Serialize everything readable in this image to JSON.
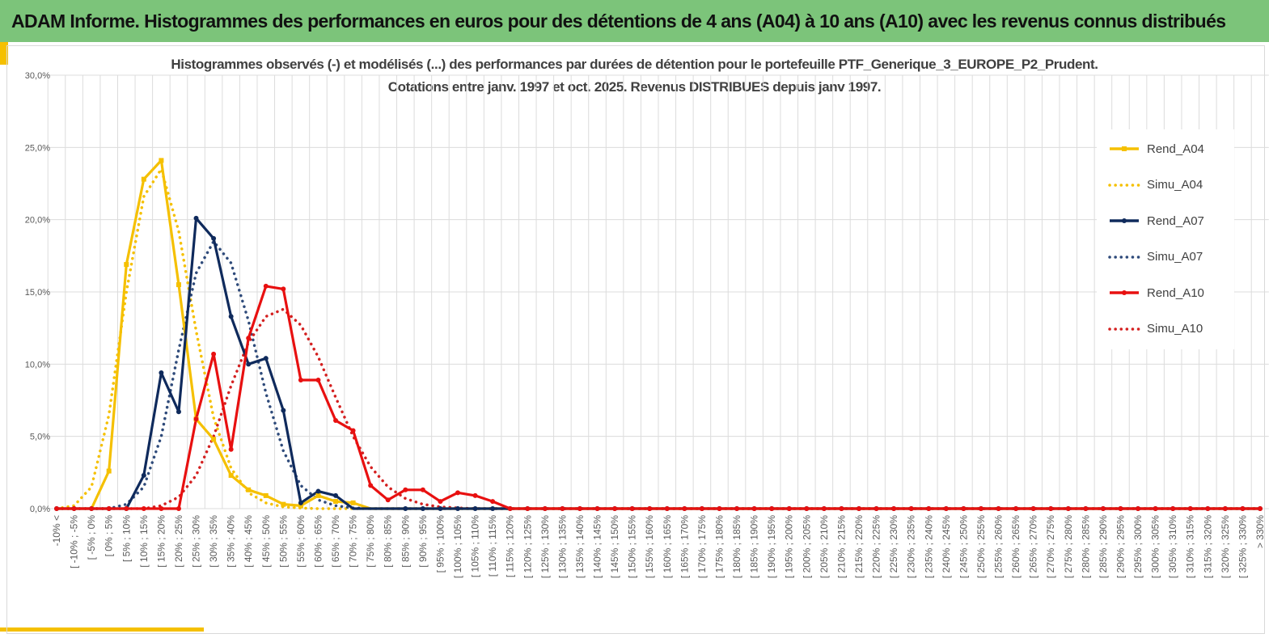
{
  "banner": {
    "title": "ADAM Informe. Histogrammes des performances en euros pour des détentions de 4 ans (A04) à 10 ans (A10) avec les revenus connus distribués"
  },
  "chart_data": {
    "type": "line",
    "title_line1": "Histogrammes observés (-) et modélisés (...) des performances par durées de détention pour le portefeuille PTF_Generique_3_EUROPE_P2_Prudent.",
    "title_line2": "Cotations entre janv. 1997 et oct. 2025. Revenus DISTRIBUES depuis janv 1997.",
    "categories": [
      "-10% <",
      "[ -10% ; -5%",
      "[ -5% ; 0%",
      "[ 0% ; 5%",
      "[ 5% ; 10%",
      "[ 10% ; 15%",
      "[ 15% ; 20%",
      "[ 20% ; 25%",
      "[ 25% ; 30%",
      "[ 30% ; 35%",
      "[ 35% ; 40%",
      "[ 40% ; 45%",
      "[ 45% ; 50%",
      "[ 50% ; 55%",
      "[ 55% ; 60%",
      "[ 60% ; 65%",
      "[ 65% ; 70%",
      "[ 70% ; 75%",
      "[ 75% ; 80%",
      "[ 80% ; 85%",
      "[ 85% ; 90%",
      "[ 90% ; 95%",
      "[ 95% ; 100%",
      "[ 100% ; 105%",
      "[ 105% ; 110%",
      "[ 110% ; 115%",
      "[ 115% ; 120%",
      "[ 120% ; 125%",
      "[ 125% ; 130%",
      "[ 130% ; 135%",
      "[ 135% ; 140%",
      "[ 140% ; 145%",
      "[ 145% ; 150%",
      "[ 150% ; 155%",
      "[ 155% ; 160%",
      "[ 160% ; 165%",
      "[ 165% ; 170%",
      "[ 170% ; 175%",
      "[ 175% ; 180%",
      "[ 180% ; 185%",
      "[ 185% ; 190%",
      "[ 190% ; 195%",
      "[ 195% ; 200%",
      "[ 200% ; 205%",
      "[ 205% ; 210%",
      "[ 210% ; 215%",
      "[ 215% ; 220%",
      "[ 220% ; 225%",
      "[ 225% ; 230%",
      "[ 230% ; 235%",
      "[ 235% ; 240%",
      "[ 240% ; 245%",
      "[ 245% ; 250%",
      "[ 250% ; 255%",
      "[ 255% ; 260%",
      "[ 260% ; 265%",
      "[ 265% ; 270%",
      "[ 270% ; 275%",
      "[ 275% ; 280%",
      "[ 280% ; 285%",
      "[ 285% ; 290%",
      "[ 290% ; 295%",
      "[ 295% ; 300%",
      "[ 300% ; 305%",
      "[ 305% ; 310%",
      "[ 310% ; 315%",
      "[ 315% ; 320%",
      "[ 320% ; 325%",
      "[ 325% ; 330%",
      "> 330%"
    ],
    "y_ticks": [
      "0,0%",
      "5,0%",
      "10,0%",
      "15,0%",
      "20,0%",
      "25,0%",
      "30,0%"
    ],
    "ylim": [
      0,
      30
    ],
    "grid": true,
    "legend_position": "right",
    "series": [
      {
        "name": "Rend_A04",
        "color": "#f5c000",
        "dashed": false,
        "markers": true,
        "values": [
          0,
          0,
          0,
          2.6,
          16.9,
          22.8,
          24.1,
          15.5,
          6.2,
          4.8,
          2.3,
          1.3,
          0.9,
          0.3,
          0.2,
          0.9,
          0.5,
          0.4,
          0,
          0,
          0,
          0,
          0,
          0,
          0,
          0,
          0,
          0,
          0,
          0,
          0,
          0,
          0,
          0,
          0,
          0,
          0,
          0,
          0,
          0,
          0,
          0,
          0,
          0,
          0,
          0,
          0,
          0,
          0,
          0,
          0,
          0,
          0,
          0,
          0,
          0,
          0,
          0,
          0,
          0,
          0,
          0,
          0,
          0,
          0,
          0,
          0,
          0,
          0,
          0
        ]
      },
      {
        "name": "Simu_A04",
        "color": "#f5c000",
        "dashed": true,
        "markers": false,
        "values": [
          0,
          0.2,
          1.5,
          6.5,
          15,
          21.6,
          23.5,
          19.2,
          12.3,
          6.3,
          2.8,
          1.1,
          0.4,
          0.12,
          0.04,
          0,
          0,
          0,
          0,
          0,
          0,
          0,
          0,
          0,
          0,
          0,
          0,
          0,
          0,
          0,
          0,
          0,
          0,
          0,
          0,
          0,
          0,
          0,
          0,
          0,
          0,
          0,
          0,
          0,
          0,
          0,
          0,
          0,
          0,
          0,
          0,
          0,
          0,
          0,
          0,
          0,
          0,
          0,
          0,
          0,
          0,
          0,
          0,
          0,
          0,
          0,
          0,
          0,
          0,
          0
        ]
      },
      {
        "name": "Rend_A07",
        "color": "#0f2a5c",
        "dashed": false,
        "markers": true,
        "values": [
          0,
          0,
          0,
          0,
          0,
          2.3,
          9.4,
          6.7,
          20.1,
          18.7,
          13.3,
          10,
          10.4,
          6.8,
          0.4,
          1.2,
          0.9,
          0,
          0,
          0,
          0,
          0,
          0,
          0,
          0,
          0,
          0,
          0,
          0,
          0,
          0,
          0,
          0,
          0,
          0,
          0,
          0,
          0,
          0,
          0,
          0,
          0,
          0,
          0,
          0,
          0,
          0,
          0,
          0,
          0,
          0,
          0,
          0,
          0,
          0,
          0,
          0,
          0,
          0,
          0,
          0,
          0,
          0,
          0,
          0,
          0,
          0,
          0,
          0,
          0
        ]
      },
      {
        "name": "Simu_A07",
        "color": "#2e4a7a",
        "dashed": true,
        "markers": false,
        "values": [
          0,
          0,
          0,
          0,
          0.3,
          1.5,
          5,
          11,
          16.3,
          18.5,
          17,
          13,
          8,
          4,
          1.6,
          0.6,
          0.2,
          0.05,
          0,
          0,
          0,
          0,
          0,
          0,
          0,
          0,
          0,
          0,
          0,
          0,
          0,
          0,
          0,
          0,
          0,
          0,
          0,
          0,
          0,
          0,
          0,
          0,
          0,
          0,
          0,
          0,
          0,
          0,
          0,
          0,
          0,
          0,
          0,
          0,
          0,
          0,
          0,
          0,
          0,
          0,
          0,
          0,
          0,
          0,
          0,
          0,
          0,
          0,
          0,
          0
        ]
      },
      {
        "name": "Rend_A10",
        "color": "#e81010",
        "dashed": false,
        "markers": true,
        "values": [
          0,
          0,
          0,
          0,
          0,
          0,
          0,
          0,
          6.2,
          10.7,
          4.1,
          11.8,
          15.4,
          15.2,
          8.9,
          8.9,
          6.1,
          5.4,
          1.6,
          0.6,
          1.3,
          1.3,
          0.5,
          1.1,
          0.9,
          0.5,
          0,
          0,
          0,
          0,
          0,
          0,
          0,
          0,
          0,
          0,
          0,
          0,
          0,
          0,
          0,
          0,
          0,
          0,
          0,
          0,
          0,
          0,
          0,
          0,
          0,
          0,
          0,
          0,
          0,
          0,
          0,
          0,
          0,
          0,
          0,
          0,
          0,
          0,
          0,
          0,
          0,
          0,
          0,
          0
        ]
      },
      {
        "name": "Simu_A10",
        "color": "#d42020",
        "dashed": true,
        "markers": false,
        "values": [
          0,
          0,
          0,
          0,
          0,
          0,
          0.2,
          0.8,
          2.3,
          5,
          8.5,
          11.5,
          13.3,
          13.8,
          12.7,
          10.5,
          7.7,
          5,
          2.9,
          1.5,
          0.7,
          0.3,
          0.12,
          0.05,
          0,
          0,
          0,
          0,
          0,
          0,
          0,
          0,
          0,
          0,
          0,
          0,
          0,
          0,
          0,
          0,
          0,
          0,
          0,
          0,
          0,
          0,
          0,
          0,
          0,
          0,
          0,
          0,
          0,
          0,
          0,
          0,
          0,
          0,
          0,
          0,
          0,
          0,
          0,
          0,
          0,
          0,
          0,
          0,
          0,
          0
        ]
      }
    ]
  }
}
